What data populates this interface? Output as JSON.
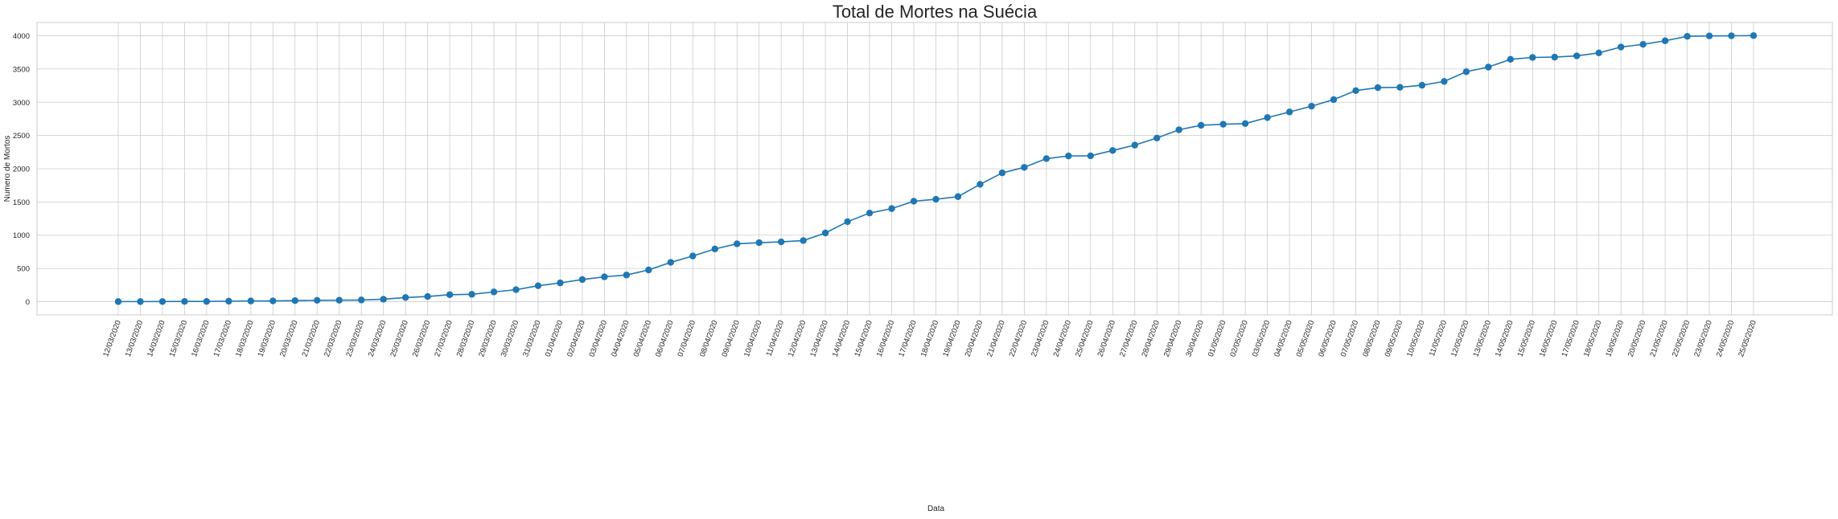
{
  "chart_data": {
    "type": "line",
    "title": "Total de Mortes na Suécia",
    "xlabel": "Data",
    "ylabel": "Numero de Mortos",
    "ylim": [
      -200,
      4200
    ],
    "yticks": [
      0,
      500,
      1000,
      1500,
      2000,
      2500,
      3000,
      3500,
      4000
    ],
    "grid": true,
    "x_tick_rotation": "70",
    "colors": {
      "line": "#1f77b4",
      "grid": "#cccccc",
      "text": "#262626"
    },
    "x": [
      "12/03/2020",
      "13/03/2020",
      "14/03/2020",
      "15/03/2020",
      "16/03/2020",
      "17/03/2020",
      "18/03/2020",
      "19/03/2020",
      "20/03/2020",
      "21/03/2020",
      "22/03/2020",
      "23/03/2020",
      "24/03/2020",
      "25/03/2020",
      "26/03/2020",
      "27/03/2020",
      "28/03/2020",
      "29/03/2020",
      "30/03/2020",
      "31/03/2020",
      "01/04/2020",
      "02/04/2020",
      "03/04/2020",
      "04/04/2020",
      "05/04/2020",
      "06/04/2020",
      "07/04/2020",
      "08/04/2020",
      "09/04/2020",
      "10/04/2020",
      "11/04/2020",
      "12/04/2020",
      "13/04/2020",
      "14/04/2020",
      "15/04/2020",
      "16/04/2020",
      "17/04/2020",
      "18/04/2020",
      "19/04/2020",
      "20/04/2020",
      "21/04/2020",
      "22/04/2020",
      "23/04/2020",
      "24/04/2020",
      "25/04/2020",
      "26/04/2020",
      "27/04/2020",
      "28/04/2020",
      "29/04/2020",
      "30/04/2020",
      "01/05/2020",
      "02/05/2020",
      "03/05/2020",
      "04/05/2020",
      "05/05/2020",
      "06/05/2020",
      "07/05/2020",
      "08/05/2020",
      "09/05/2020",
      "10/05/2020",
      "11/05/2020",
      "12/05/2020",
      "13/05/2020",
      "14/05/2020",
      "15/05/2020",
      "16/05/2020",
      "17/05/2020",
      "18/05/2020",
      "19/05/2020",
      "20/05/2020",
      "21/05/2020",
      "22/05/2020",
      "23/05/2020",
      "24/05/2020",
      "25/05/2020"
    ],
    "series": [
      {
        "values": [
          1,
          1,
          2,
          3,
          3,
          7,
          10,
          11,
          15,
          20,
          21,
          25,
          36,
          62,
          77,
          105,
          110,
          146,
          180,
          239,
          282,
          333,
          373,
          401,
          477,
          591,
          687,
          793,
          870,
          887,
          899,
          919,
          1033,
          1203,
          1333,
          1400,
          1511,
          1540,
          1580,
          1765,
          1937,
          2021,
          2152,
          2192,
          2194,
          2274,
          2355,
          2462,
          2586,
          2653,
          2669,
          2679,
          2769,
          2854,
          2941,
          3040,
          3175,
          3220,
          3225,
          3256,
          3313,
          3460,
          3529,
          3646,
          3674,
          3679,
          3698,
          3743,
          3831,
          3871,
          3925,
          3992,
          3998,
          4000,
          4003
        ]
      }
    ]
  }
}
